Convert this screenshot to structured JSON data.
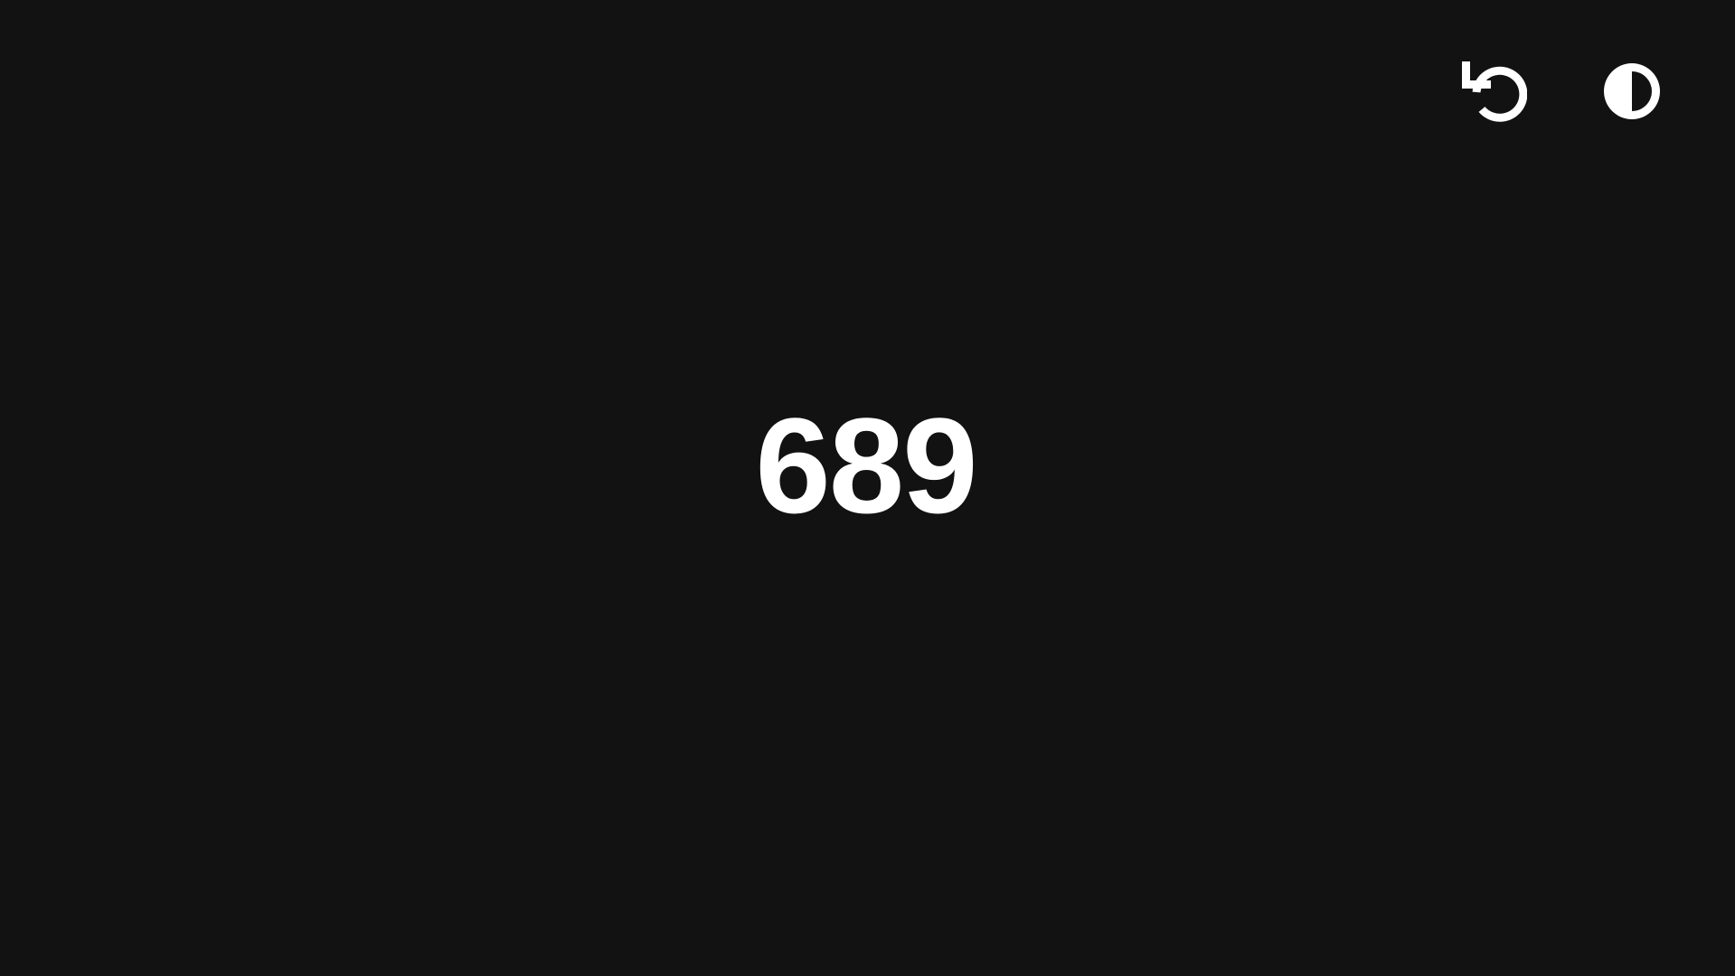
{
  "counter": {
    "value": "689"
  },
  "toolbar": {
    "reset_icon": "reset-icon",
    "theme_icon": "contrast-icon"
  },
  "colors": {
    "background": "#121212",
    "foreground": "#ffffff"
  }
}
